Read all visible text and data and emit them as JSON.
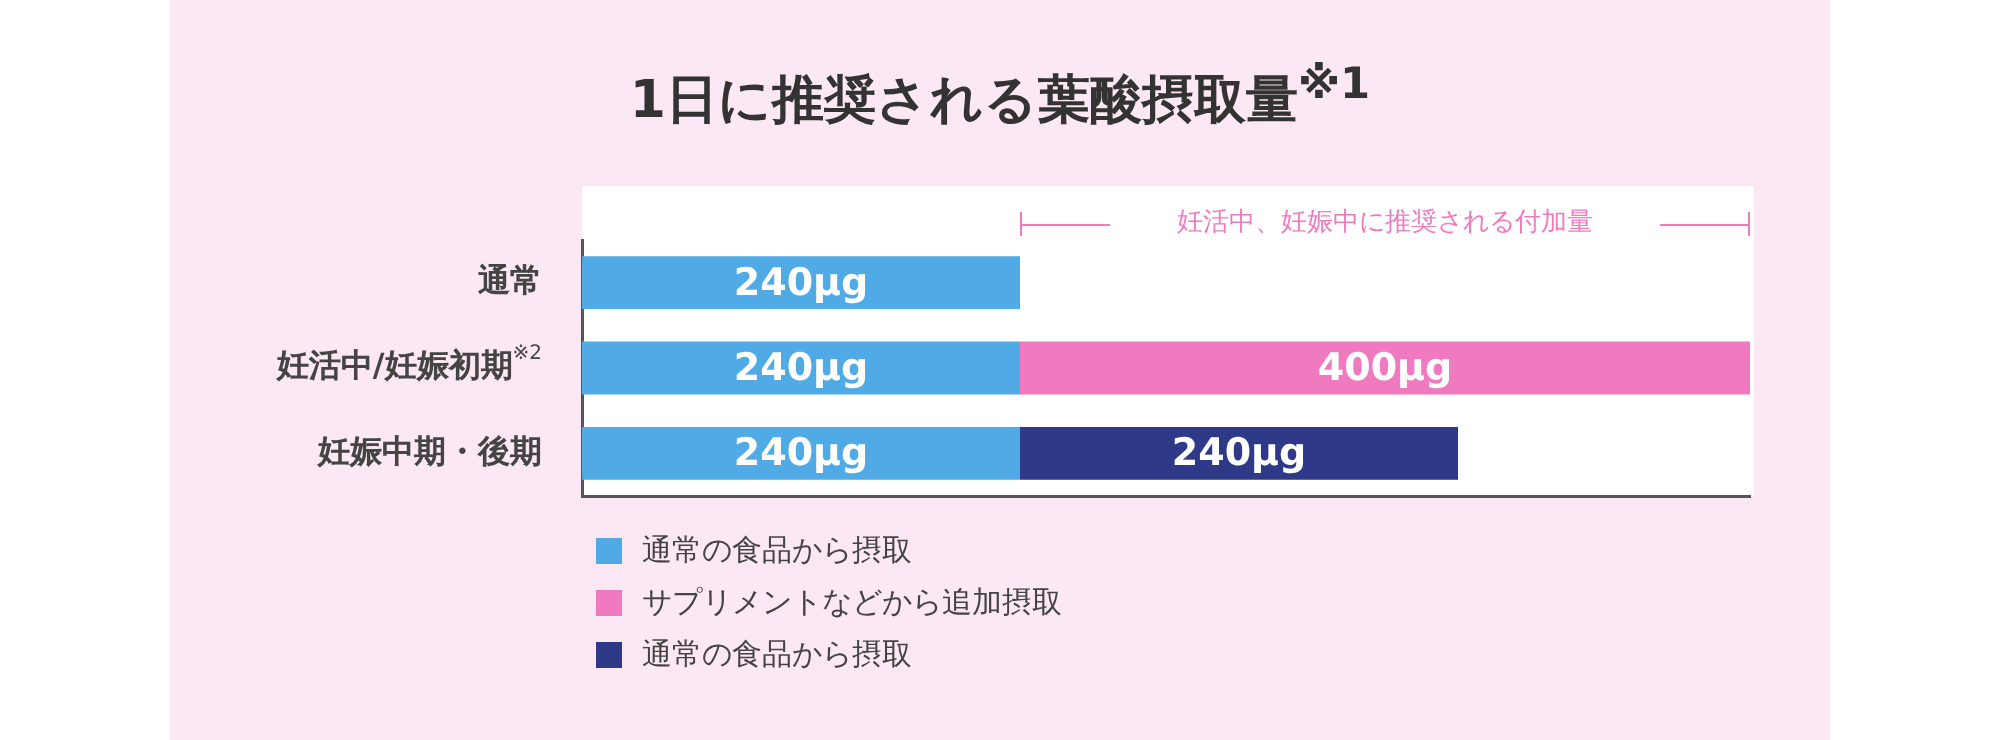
{
  "chart_data": {
    "type": "bar",
    "title": "1日に推奨される葉酸摂取量$^{※1}$",
    "orientation": "horizontal",
    "stacked": true,
    "categories": [
      "通常",
      "妊活中/妊娠初期$^{※2}$",
      "妊娠中期・後期"
    ],
    "series": [
      {
        "name": "通常の食品から摂取",
        "color": "#4faae6",
        "values": [
          240,
          240,
          240
        ],
        "value_labels": [
          "240μg",
          "240μg",
          "240μg"
        ]
      },
      {
        "name": "サプリメントなどから追加摂取",
        "color": "#f07ac0",
        "values": [
          null,
          400,
          null
        ],
        "value_labels": [
          null,
          "400μg",
          null
        ]
      },
      {
        "name": "通常の食品から摂取",
        "color": "#2e3a87",
        "values": [
          null,
          null,
          240
        ],
        "value_labels": [
          null,
          null,
          "240μg"
        ]
      }
    ],
    "xlim": [
      0,
      640
    ],
    "tick_labels": "y",
    "grid": false,
    "legend": "bottom",
    "annotations": [
      "妊活中、妊娠中に推奨される付加量"
    ]
  }
}
